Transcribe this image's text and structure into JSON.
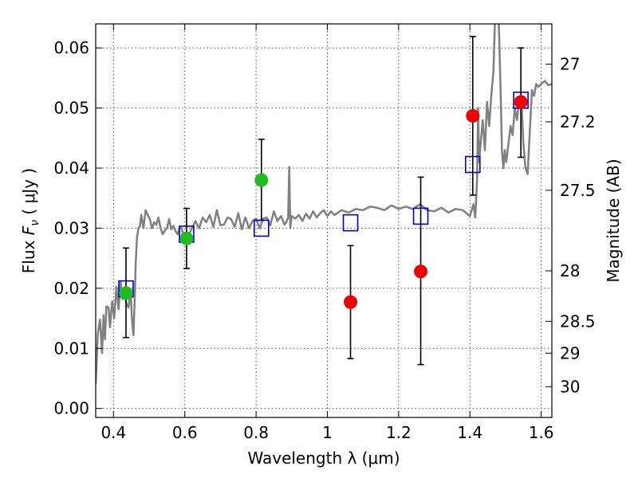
{
  "chart_data": {
    "type": "scatter",
    "xlabel": "Wavelength  λ (μm)",
    "ylabel": "Flux  F_ν  ( μJy )",
    "ylabel_parts": {
      "prefix": "Flux  ",
      "symbol": "F",
      "subscript": "ν",
      "unit": "  ( μJy )"
    },
    "y2label": "Magnitude (AB)",
    "xlim": [
      0.35,
      1.63
    ],
    "ylim": [
      -0.0015,
      0.064
    ],
    "grid": true,
    "x_ticks": [
      {
        "value": 0.4,
        "label": "0.4"
      },
      {
        "value": 0.6,
        "label": "0.6"
      },
      {
        "value": 0.8,
        "label": "0.8"
      },
      {
        "value": 1.0,
        "label": "1"
      },
      {
        "value": 1.2,
        "label": "1.2"
      },
      {
        "value": 1.4,
        "label": "1.4"
      },
      {
        "value": 1.6,
        "label": "1.6"
      }
    ],
    "y_ticks": [
      {
        "value": 0.0,
        "label": "0.00"
      },
      {
        "value": 0.01,
        "label": "0.01"
      },
      {
        "value": 0.02,
        "label": "0.02"
      },
      {
        "value": 0.03,
        "label": "0.03"
      },
      {
        "value": 0.04,
        "label": "0.04"
      },
      {
        "value": 0.05,
        "label": "0.05"
      },
      {
        "value": 0.06,
        "label": "0.06"
      }
    ],
    "y2_ticks": [
      {
        "flux": 0.0573,
        "label": "27"
      },
      {
        "flux": 0.0477,
        "label": "27.2"
      },
      {
        "flux": 0.0363,
        "label": "27.5"
      },
      {
        "flux": 0.0229,
        "label": "28"
      },
      {
        "flux": 0.0145,
        "label": "28.5"
      },
      {
        "flux": 0.0092,
        "label": "29"
      },
      {
        "flux": 0.0036,
        "label": "30"
      }
    ],
    "model_spectrum": {
      "color": "#808080",
      "x": [
        0.35,
        0.356,
        0.362,
        0.368,
        0.372,
        0.376,
        0.38,
        0.386,
        0.39,
        0.396,
        0.402,
        0.408,
        0.414,
        0.42,
        0.425,
        0.43,
        0.436,
        0.442,
        0.448,
        0.452,
        0.456,
        0.46,
        0.462,
        0.466,
        0.47,
        0.474,
        0.478,
        0.484,
        0.49,
        0.496,
        0.502,
        0.508,
        0.514,
        0.52,
        0.526,
        0.532,
        0.538,
        0.544,
        0.55,
        0.556,
        0.562,
        0.568,
        0.574,
        0.58,
        0.586,
        0.592,
        0.598,
        0.604,
        0.612,
        0.62,
        0.63,
        0.64,
        0.65,
        0.66,
        0.67,
        0.68,
        0.69,
        0.7,
        0.71,
        0.72,
        0.73,
        0.74,
        0.75,
        0.76,
        0.77,
        0.78,
        0.79,
        0.8,
        0.81,
        0.82,
        0.83,
        0.84,
        0.85,
        0.86,
        0.87,
        0.88,
        0.885,
        0.89,
        0.893,
        0.896,
        0.9,
        0.91,
        0.92,
        0.93,
        0.94,
        0.95,
        0.96,
        0.97,
        0.98,
        0.99,
        1.0,
        1.01,
        1.02,
        1.04,
        1.06,
        1.08,
        1.1,
        1.12,
        1.14,
        1.16,
        1.18,
        1.2,
        1.22,
        1.24,
        1.26,
        1.28,
        1.3,
        1.32,
        1.34,
        1.36,
        1.38,
        1.4,
        1.41,
        1.415,
        1.42,
        1.423,
        1.426,
        1.43,
        1.436,
        1.442,
        1.448,
        1.454,
        1.46,
        1.466,
        1.47,
        1.474,
        1.478,
        1.482,
        1.486,
        1.49,
        1.494,
        1.498,
        1.502,
        1.508,
        1.514,
        1.52,
        1.526,
        1.532,
        1.538,
        1.544,
        1.55,
        1.556,
        1.562,
        1.568,
        1.574,
        1.58,
        1.586,
        1.592,
        1.6,
        1.61,
        1.62,
        1.63
      ],
      "y": [
        0.004,
        0.0125,
        0.0148,
        0.0092,
        0.0155,
        0.0115,
        0.017,
        0.0168,
        0.0135,
        0.0178,
        0.015,
        0.0202,
        0.0165,
        0.021,
        0.0182,
        0.02,
        0.0175,
        0.0168,
        0.0195,
        0.0145,
        0.0122,
        0.0195,
        0.024,
        0.0285,
        0.03,
        0.0303,
        0.0322,
        0.03,
        0.033,
        0.0322,
        0.0315,
        0.03,
        0.031,
        0.0306,
        0.0318,
        0.03,
        0.029,
        0.0296,
        0.03,
        0.0315,
        0.0298,
        0.0304,
        0.0295,
        0.029,
        0.0302,
        0.0298,
        0.028,
        0.0283,
        0.029,
        0.03,
        0.0312,
        0.03,
        0.0318,
        0.031,
        0.0322,
        0.0302,
        0.033,
        0.0305,
        0.0306,
        0.0318,
        0.0315,
        0.0302,
        0.0325,
        0.0298,
        0.0318,
        0.03,
        0.0312,
        0.0316,
        0.03,
        0.0316,
        0.0318,
        0.0305,
        0.0328,
        0.0312,
        0.032,
        0.0306,
        0.031,
        0.0318,
        0.0402,
        0.03,
        0.032,
        0.0316,
        0.0322,
        0.0312,
        0.0324,
        0.0316,
        0.0328,
        0.0318,
        0.0325,
        0.033,
        0.032,
        0.0328,
        0.0322,
        0.033,
        0.0326,
        0.0332,
        0.033,
        0.0336,
        0.0334,
        0.033,
        0.0338,
        0.0332,
        0.0336,
        0.0332,
        0.034,
        0.033,
        0.0328,
        0.0334,
        0.0326,
        0.0332,
        0.033,
        0.032,
        0.034,
        0.0318,
        0.038,
        0.05,
        0.041,
        0.044,
        0.048,
        0.043,
        0.051,
        0.047,
        0.052,
        0.056,
        0.064,
        0.07,
        0.07,
        0.062,
        0.053,
        0.043,
        0.04,
        0.043,
        0.041,
        0.044,
        0.047,
        0.0455,
        0.05,
        0.048,
        0.051,
        0.052,
        0.044,
        0.04,
        0.039,
        0.046,
        0.053,
        0.052,
        0.054,
        0.0535,
        0.054,
        0.0545,
        0.0538,
        0.054
      ]
    },
    "series": [
      {
        "marker": "open-square",
        "color": "#0000cc",
        "x": [
          0.435,
          0.605,
          0.815,
          1.065,
          1.262,
          1.408,
          1.543
        ],
        "y": [
          0.0199,
          0.029,
          0.03,
          0.0309,
          0.032,
          0.0406,
          0.0513
        ]
      },
      {
        "marker": "filled-circle",
        "color": "#22bb22",
        "x": [
          0.435,
          0.605,
          0.815
        ],
        "y": [
          0.0192,
          0.0283,
          0.038
        ],
        "yerr_low": [
          0.0118,
          0.0233,
          0.0313
        ],
        "yerr_high": [
          0.0267,
          0.0333,
          0.0448
        ]
      },
      {
        "marker": "filled-circle",
        "color": "#ee0000",
        "x": [
          1.065,
          1.262,
          1.408,
          1.543
        ],
        "y": [
          0.0177,
          0.0228,
          0.0487,
          0.051
        ],
        "yerr_low": [
          0.0083,
          0.0073,
          0.0355,
          0.0418
        ],
        "yerr_high": [
          0.0271,
          0.0385,
          0.0619,
          0.06
        ]
      }
    ]
  }
}
